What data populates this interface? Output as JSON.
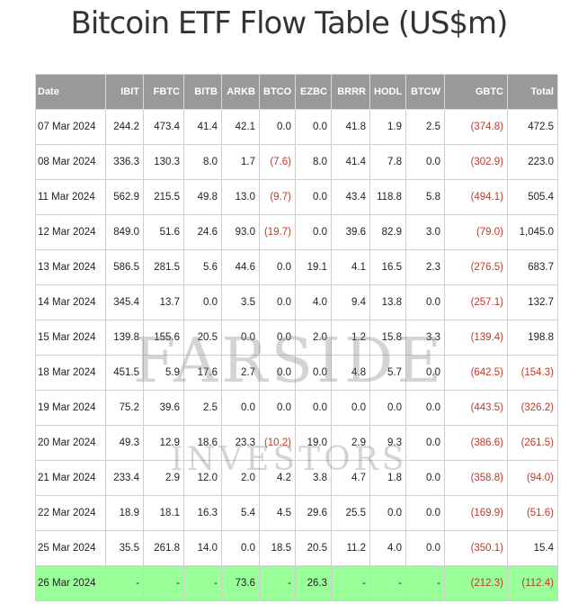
{
  "title": "Bitcoin ETF Flow Table (US$m)",
  "watermark": {
    "line1": "FARSIDE",
    "line2": "INVESTORS"
  },
  "colors": {
    "header_bg": "#999999",
    "negative": "#c0392b",
    "highlight": "#99ff99"
  },
  "columns": [
    "Date",
    "IBIT",
    "FBTC",
    "BITB",
    "ARKB",
    "BTCO",
    "EZBC",
    "BRRR",
    "HODL",
    "BTCW",
    "GBTC",
    "Total"
  ],
  "rows": [
    [
      "07 Mar 2024",
      "244.2",
      "473.4",
      "41.4",
      "42.1",
      "0.0",
      "0.0",
      "41.8",
      "1.9",
      "2.5",
      "(374.8)",
      "472.5"
    ],
    [
      "08 Mar 2024",
      "336.3",
      "130.3",
      "8.0",
      "1.7",
      "(7.6)",
      "8.0",
      "41.4",
      "7.8",
      "0.0",
      "(302.9)",
      "223.0"
    ],
    [
      "11 Mar 2024",
      "562.9",
      "215.5",
      "49.8",
      "13.0",
      "(9.7)",
      "0.0",
      "43.4",
      "118.8",
      "5.8",
      "(494.1)",
      "505.4"
    ],
    [
      "12 Mar 2024",
      "849.0",
      "51.6",
      "24.6",
      "93.0",
      "(19.7)",
      "0.0",
      "39.6",
      "82.9",
      "3.0",
      "(79.0)",
      "1,045.0"
    ],
    [
      "13 Mar 2024",
      "586.5",
      "281.5",
      "5.6",
      "44.6",
      "0.0",
      "19.1",
      "4.1",
      "16.5",
      "2.3",
      "(276.5)",
      "683.7"
    ],
    [
      "14 Mar 2024",
      "345.4",
      "13.7",
      "0.0",
      "3.5",
      "0.0",
      "4.0",
      "9.4",
      "13.8",
      "0.0",
      "(257.1)",
      "132.7"
    ],
    [
      "15 Mar 2024",
      "139.8",
      "155.6",
      "20.5",
      "0.0",
      "0.0",
      "2.0",
      "1.2",
      "15.8",
      "3.3",
      "(139.4)",
      "198.8"
    ],
    [
      "18 Mar 2024",
      "451.5",
      "5.9",
      "17.6",
      "2.7",
      "0.0",
      "0.0",
      "4.8",
      "5.7",
      "0.0",
      "(642.5)",
      "(154.3)"
    ],
    [
      "19 Mar 2024",
      "75.2",
      "39.6",
      "2.5",
      "0.0",
      "0.0",
      "0.0",
      "0.0",
      "0.0",
      "0.0",
      "(443.5)",
      "(326.2)"
    ],
    [
      "20 Mar 2024",
      "49.3",
      "12.9",
      "18.6",
      "23.3",
      "(10.2)",
      "19.0",
      "2.9",
      "9.3",
      "0.0",
      "(386.6)",
      "(261.5)"
    ],
    [
      "21 Mar 2024",
      "233.4",
      "2.9",
      "12.0",
      "2.0",
      "4.2",
      "3.8",
      "4.7",
      "1.8",
      "0.0",
      "(358.8)",
      "(94.0)"
    ],
    [
      "22 Mar 2024",
      "18.9",
      "18.1",
      "16.3",
      "5.4",
      "4.5",
      "29.6",
      "25.5",
      "0.0",
      "0.0",
      "(169.9)",
      "(51.6)"
    ],
    [
      "25 Mar 2024",
      "35.5",
      "261.8",
      "14.0",
      "0.0",
      "18.5",
      "20.5",
      "11.2",
      "4.0",
      "0.0",
      "(350.1)",
      "15.4"
    ],
    [
      "26 Mar 2024",
      "-",
      "-",
      "-",
      "73.6",
      "-",
      "26.3",
      "-",
      "-",
      "-",
      "(212.3)",
      "(112.4)"
    ]
  ],
  "highlighted_row": 13
}
